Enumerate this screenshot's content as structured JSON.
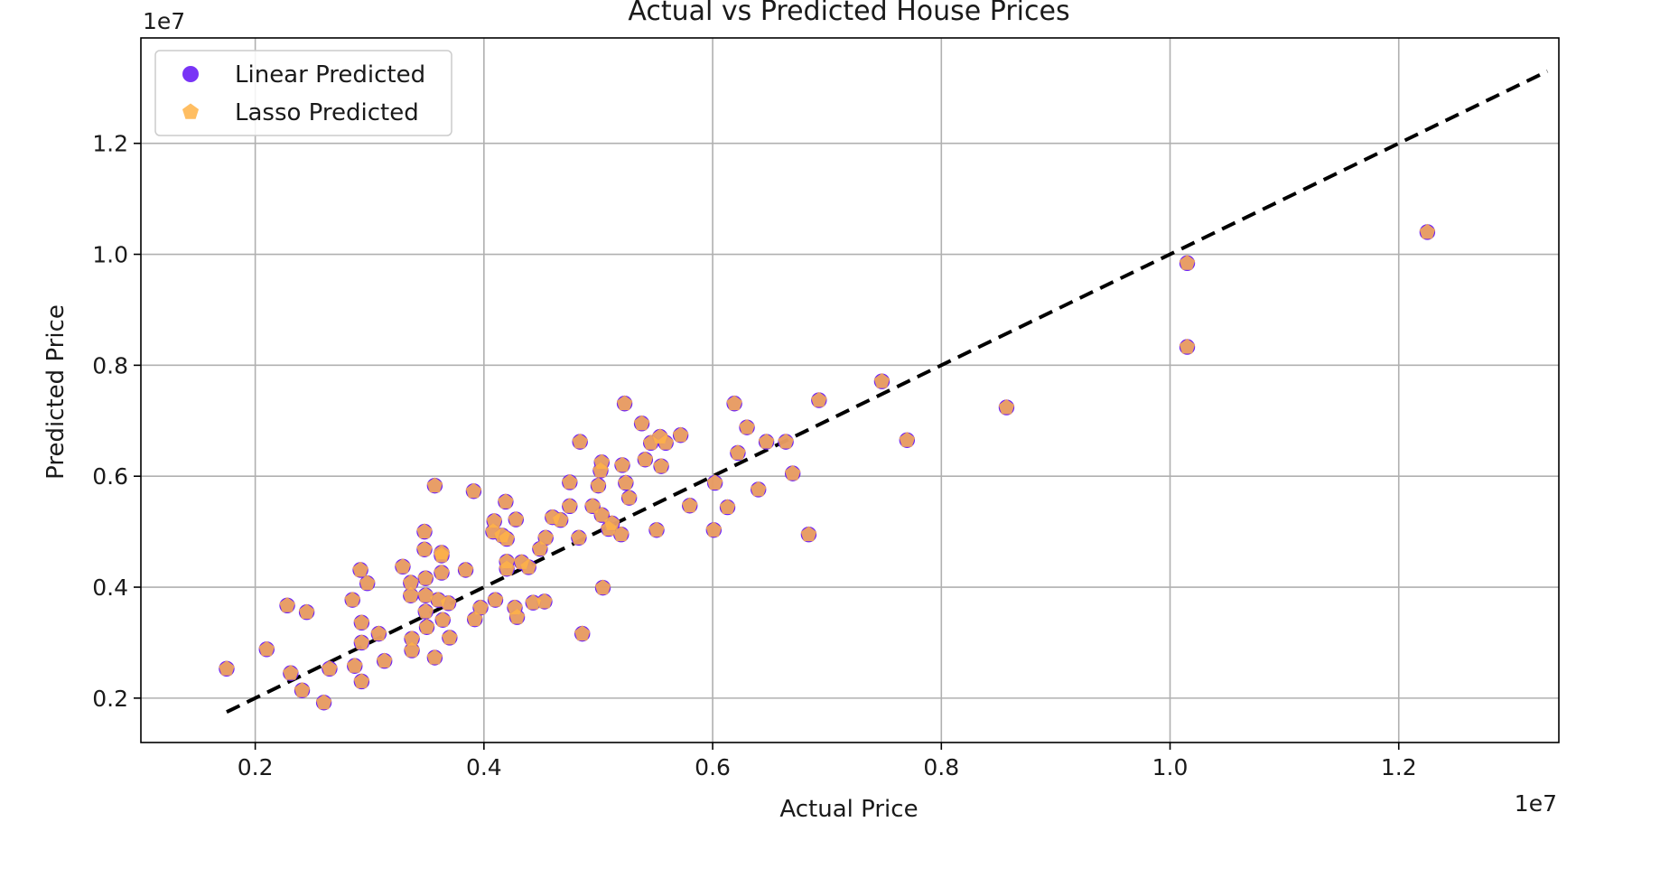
{
  "chart_data": {
    "type": "scatter",
    "title": "Actual vs Predicted House Prices",
    "xlabel": "Actual Price",
    "ylabel": "Predicted Price",
    "x_offset_text": "1e7",
    "y_offset_text": "1e7",
    "xlim": [
      0.1,
      1.34
    ],
    "ylim": [
      0.12,
      1.39
    ],
    "xticks": [
      0.2,
      0.4,
      0.6,
      0.8,
      1.0,
      1.2
    ],
    "xtick_labels": [
      "0.2",
      "0.4",
      "0.6",
      "0.8",
      "1.0",
      "1.2"
    ],
    "yticks": [
      0.2,
      0.4,
      0.6,
      0.8,
      1.0,
      1.2
    ],
    "ytick_labels": [
      "0.2",
      "0.4",
      "0.6",
      "0.8",
      "1.0",
      "1.2"
    ],
    "grid": true,
    "legend_position": "top-left",
    "reference_line": {
      "style": "dashed",
      "color": "#000000",
      "from": [
        0.175,
        0.175
      ],
      "to": [
        1.33,
        1.33
      ]
    },
    "series": [
      {
        "name": "Linear Predicted",
        "marker": "circle",
        "color": "#6a1ef5",
        "points": [
          [
            0.175,
            0.253
          ],
          [
            0.21,
            0.288
          ],
          [
            0.228,
            0.367
          ],
          [
            0.231,
            0.245
          ],
          [
            0.241,
            0.214
          ],
          [
            0.245,
            0.355
          ],
          [
            0.26,
            0.192
          ],
          [
            0.265,
            0.253
          ],
          [
            0.285,
            0.377
          ],
          [
            0.287,
            0.258
          ],
          [
            0.292,
            0.431
          ],
          [
            0.293,
            0.336
          ],
          [
            0.293,
            0.3
          ],
          [
            0.293,
            0.23
          ],
          [
            0.298,
            0.407
          ],
          [
            0.308,
            0.316
          ],
          [
            0.313,
            0.267
          ],
          [
            0.329,
            0.437
          ],
          [
            0.336,
            0.385
          ],
          [
            0.336,
            0.408
          ],
          [
            0.337,
            0.307
          ],
          [
            0.337,
            0.286
          ],
          [
            0.348,
            0.5
          ],
          [
            0.348,
            0.468
          ],
          [
            0.349,
            0.416
          ],
          [
            0.349,
            0.385
          ],
          [
            0.349,
            0.356
          ],
          [
            0.35,
            0.328
          ],
          [
            0.357,
            0.583
          ],
          [
            0.357,
            0.273
          ],
          [
            0.36,
            0.377
          ],
          [
            0.363,
            0.462
          ],
          [
            0.363,
            0.457
          ],
          [
            0.363,
            0.426
          ],
          [
            0.364,
            0.341
          ],
          [
            0.369,
            0.371
          ],
          [
            0.37,
            0.309
          ],
          [
            0.384,
            0.431
          ],
          [
            0.391,
            0.573
          ],
          [
            0.392,
            0.342
          ],
          [
            0.397,
            0.363
          ],
          [
            0.408,
            0.5
          ],
          [
            0.409,
            0.519
          ],
          [
            0.41,
            0.377
          ],
          [
            0.416,
            0.493
          ],
          [
            0.419,
            0.554
          ],
          [
            0.42,
            0.487
          ],
          [
            0.42,
            0.446
          ],
          [
            0.42,
            0.433
          ],
          [
            0.427,
            0.363
          ],
          [
            0.428,
            0.522
          ],
          [
            0.429,
            0.346
          ],
          [
            0.433,
            0.445
          ],
          [
            0.439,
            0.436
          ],
          [
            0.443,
            0.372
          ],
          [
            0.449,
            0.469
          ],
          [
            0.453,
            0.374
          ],
          [
            0.454,
            0.489
          ],
          [
            0.46,
            0.526
          ],
          [
            0.467,
            0.521
          ],
          [
            0.475,
            0.589
          ],
          [
            0.475,
            0.546
          ],
          [
            0.483,
            0.489
          ],
          [
            0.484,
            0.662
          ],
          [
            0.486,
            0.316
          ],
          [
            0.495,
            0.546
          ],
          [
            0.5,
            0.583
          ],
          [
            0.502,
            0.61
          ],
          [
            0.503,
            0.625
          ],
          [
            0.503,
            0.53
          ],
          [
            0.504,
            0.399
          ],
          [
            0.509,
            0.505
          ],
          [
            0.512,
            0.515
          ],
          [
            0.52,
            0.495
          ],
          [
            0.521,
            0.62
          ],
          [
            0.523,
            0.731
          ],
          [
            0.524,
            0.588
          ],
          [
            0.527,
            0.561
          ],
          [
            0.538,
            0.695
          ],
          [
            0.541,
            0.63
          ],
          [
            0.546,
            0.66
          ],
          [
            0.551,
            0.503
          ],
          [
            0.554,
            0.671
          ],
          [
            0.555,
            0.618
          ],
          [
            0.559,
            0.66
          ],
          [
            0.572,
            0.674
          ],
          [
            0.58,
            0.547
          ],
          [
            0.601,
            0.503
          ],
          [
            0.602,
            0.588
          ],
          [
            0.613,
            0.544
          ],
          [
            0.619,
            0.731
          ],
          [
            0.622,
            0.642
          ],
          [
            0.63,
            0.688
          ],
          [
            0.64,
            0.576
          ],
          [
            0.647,
            0.662
          ],
          [
            0.664,
            0.662
          ],
          [
            0.67,
            0.605
          ],
          [
            0.684,
            0.495
          ],
          [
            0.693,
            0.737
          ],
          [
            0.748,
            0.771
          ],
          [
            0.77,
            0.665
          ],
          [
            0.857,
            0.724
          ],
          [
            1.015,
            0.984
          ],
          [
            1.015,
            0.833
          ],
          [
            1.225,
            1.04
          ]
        ]
      },
      {
        "name": "Lasso Predicted",
        "marker": "pentagon",
        "color": "#ffb347",
        "points": [
          [
            0.175,
            0.253
          ],
          [
            0.21,
            0.288
          ],
          [
            0.228,
            0.367
          ],
          [
            0.231,
            0.245
          ],
          [
            0.241,
            0.214
          ],
          [
            0.245,
            0.355
          ],
          [
            0.26,
            0.192
          ],
          [
            0.265,
            0.253
          ],
          [
            0.285,
            0.377
          ],
          [
            0.287,
            0.258
          ],
          [
            0.292,
            0.431
          ],
          [
            0.293,
            0.336
          ],
          [
            0.293,
            0.3
          ],
          [
            0.293,
            0.23
          ],
          [
            0.298,
            0.407
          ],
          [
            0.308,
            0.316
          ],
          [
            0.313,
            0.267
          ],
          [
            0.329,
            0.437
          ],
          [
            0.336,
            0.385
          ],
          [
            0.336,
            0.408
          ],
          [
            0.337,
            0.307
          ],
          [
            0.337,
            0.286
          ],
          [
            0.348,
            0.5
          ],
          [
            0.348,
            0.468
          ],
          [
            0.349,
            0.416
          ],
          [
            0.349,
            0.385
          ],
          [
            0.349,
            0.356
          ],
          [
            0.35,
            0.328
          ],
          [
            0.357,
            0.583
          ],
          [
            0.357,
            0.273
          ],
          [
            0.36,
            0.377
          ],
          [
            0.363,
            0.462
          ],
          [
            0.363,
            0.457
          ],
          [
            0.363,
            0.426
          ],
          [
            0.364,
            0.341
          ],
          [
            0.369,
            0.371
          ],
          [
            0.37,
            0.309
          ],
          [
            0.384,
            0.431
          ],
          [
            0.391,
            0.573
          ],
          [
            0.392,
            0.342
          ],
          [
            0.397,
            0.363
          ],
          [
            0.408,
            0.5
          ],
          [
            0.409,
            0.519
          ],
          [
            0.41,
            0.377
          ],
          [
            0.416,
            0.493
          ],
          [
            0.419,
            0.554
          ],
          [
            0.42,
            0.487
          ],
          [
            0.42,
            0.446
          ],
          [
            0.42,
            0.433
          ],
          [
            0.427,
            0.363
          ],
          [
            0.428,
            0.522
          ],
          [
            0.429,
            0.346
          ],
          [
            0.433,
            0.445
          ],
          [
            0.439,
            0.436
          ],
          [
            0.443,
            0.372
          ],
          [
            0.449,
            0.469
          ],
          [
            0.453,
            0.374
          ],
          [
            0.454,
            0.489
          ],
          [
            0.46,
            0.526
          ],
          [
            0.467,
            0.521
          ],
          [
            0.475,
            0.589
          ],
          [
            0.475,
            0.546
          ],
          [
            0.483,
            0.489
          ],
          [
            0.484,
            0.662
          ],
          [
            0.486,
            0.316
          ],
          [
            0.495,
            0.546
          ],
          [
            0.5,
            0.583
          ],
          [
            0.502,
            0.61
          ],
          [
            0.503,
            0.625
          ],
          [
            0.503,
            0.53
          ],
          [
            0.504,
            0.399
          ],
          [
            0.509,
            0.505
          ],
          [
            0.512,
            0.515
          ],
          [
            0.52,
            0.495
          ],
          [
            0.521,
            0.62
          ],
          [
            0.523,
            0.731
          ],
          [
            0.524,
            0.588
          ],
          [
            0.527,
            0.561
          ],
          [
            0.538,
            0.695
          ],
          [
            0.541,
            0.63
          ],
          [
            0.546,
            0.66
          ],
          [
            0.551,
            0.503
          ],
          [
            0.554,
            0.671
          ],
          [
            0.555,
            0.618
          ],
          [
            0.559,
            0.66
          ],
          [
            0.572,
            0.674
          ],
          [
            0.58,
            0.547
          ],
          [
            0.601,
            0.503
          ],
          [
            0.602,
            0.588
          ],
          [
            0.613,
            0.544
          ],
          [
            0.619,
            0.731
          ],
          [
            0.622,
            0.642
          ],
          [
            0.63,
            0.688
          ],
          [
            0.64,
            0.576
          ],
          [
            0.647,
            0.662
          ],
          [
            0.664,
            0.662
          ],
          [
            0.67,
            0.605
          ],
          [
            0.684,
            0.495
          ],
          [
            0.693,
            0.737
          ],
          [
            0.748,
            0.771
          ],
          [
            0.77,
            0.665
          ],
          [
            0.857,
            0.724
          ],
          [
            1.015,
            0.984
          ],
          [
            1.015,
            0.833
          ],
          [
            1.225,
            1.04
          ]
        ]
      }
    ]
  }
}
